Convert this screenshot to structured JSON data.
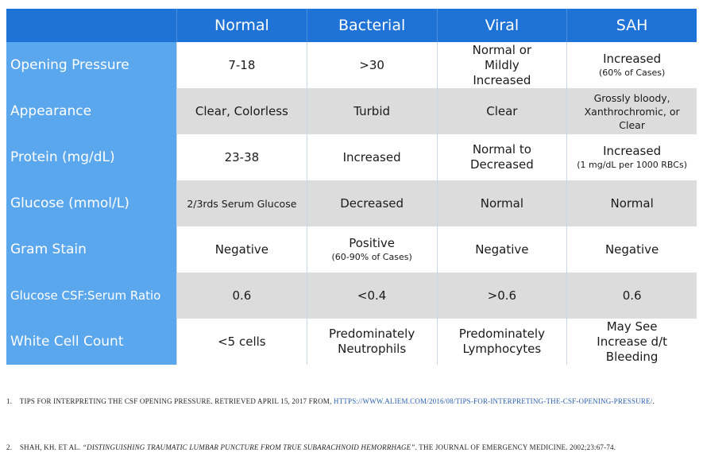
{
  "table": {
    "columns": [
      "",
      "Normal",
      "Bacterial",
      "Viral",
      "SAH"
    ],
    "rows": [
      {
        "label": "Opening Pressure",
        "cells": [
          {
            "main": "7-18",
            "sub": ""
          },
          {
            "main": ">30",
            "sub": ""
          },
          {
            "main": "Normal or Mildly Increased",
            "sub": ""
          },
          {
            "main": "Increased",
            "sub": "(60% of Cases)"
          }
        ]
      },
      {
        "label": "Appearance",
        "cells": [
          {
            "main": "Clear, Colorless",
            "sub": ""
          },
          {
            "main": "Turbid",
            "sub": ""
          },
          {
            "main": "Clear",
            "sub": ""
          },
          {
            "main": "Grossly bloody, Xanthrochromic, or Clear",
            "sub": ""
          }
        ]
      },
      {
        "label": "Protein (mg/dL)",
        "cells": [
          {
            "main": "23-38",
            "sub": ""
          },
          {
            "main": "Increased",
            "sub": ""
          },
          {
            "main": "Normal to Decreased",
            "sub": ""
          },
          {
            "main": "Increased",
            "sub": "(1 mg/dL per 1000 RBCs)"
          }
        ]
      },
      {
        "label": "Glucose (mmol/L)",
        "cells": [
          {
            "main": "2/3rds Serum Glucose",
            "sub": ""
          },
          {
            "main": "Decreased",
            "sub": ""
          },
          {
            "main": "Normal",
            "sub": ""
          },
          {
            "main": "Normal",
            "sub": ""
          }
        ]
      },
      {
        "label": "Gram Stain",
        "cells": [
          {
            "main": "Negative",
            "sub": ""
          },
          {
            "main": "Positive",
            "sub": "(60-90% of Cases)"
          },
          {
            "main": "Negative",
            "sub": ""
          },
          {
            "main": "Negative",
            "sub": ""
          }
        ]
      },
      {
        "label": "Glucose CSF:Serum Ratio",
        "cells": [
          {
            "main": "0.6",
            "sub": ""
          },
          {
            "main": "<0.4",
            "sub": ""
          },
          {
            "main": ">0.6",
            "sub": ""
          },
          {
            "main": "0.6",
            "sub": ""
          }
        ]
      },
      {
        "label": "White Cell Count",
        "cells": [
          {
            "main": "<5 cells",
            "sub": ""
          },
          {
            "main": "Predominately Neutrophils",
            "sub": ""
          },
          {
            "main": "Predominately Lymphocytes",
            "sub": ""
          },
          {
            "main": "May See Increase d/t Bleeding",
            "sub": ""
          }
        ]
      }
    ]
  },
  "references": {
    "ref1": {
      "number": "1.",
      "text": "TIPS FOR INTERPRETING THE CSF OPENING PRESSURE.  RETRIEVED APRIL 15, 2017 FROM, ",
      "link": "HTTPS://WWW.ALIEM.COM/2016/08/TIPS-FOR-INTERPRETING-THE-CSF-OPENING-PRESSURE/",
      "tail": "."
    },
    "ref2": {
      "number": "2.",
      "authors": "SHAH, KH. ET AL. ",
      "title": "“DISTINGUISHING TRAUMATIC LUMBAR PUNCTURE FROM TRUE SUBARACHNOID HEMORRHAGE”",
      "tail": ".  THE JOURNAL OF EMERGENCY MEDICINE. 2002;23:67-74."
    }
  }
}
